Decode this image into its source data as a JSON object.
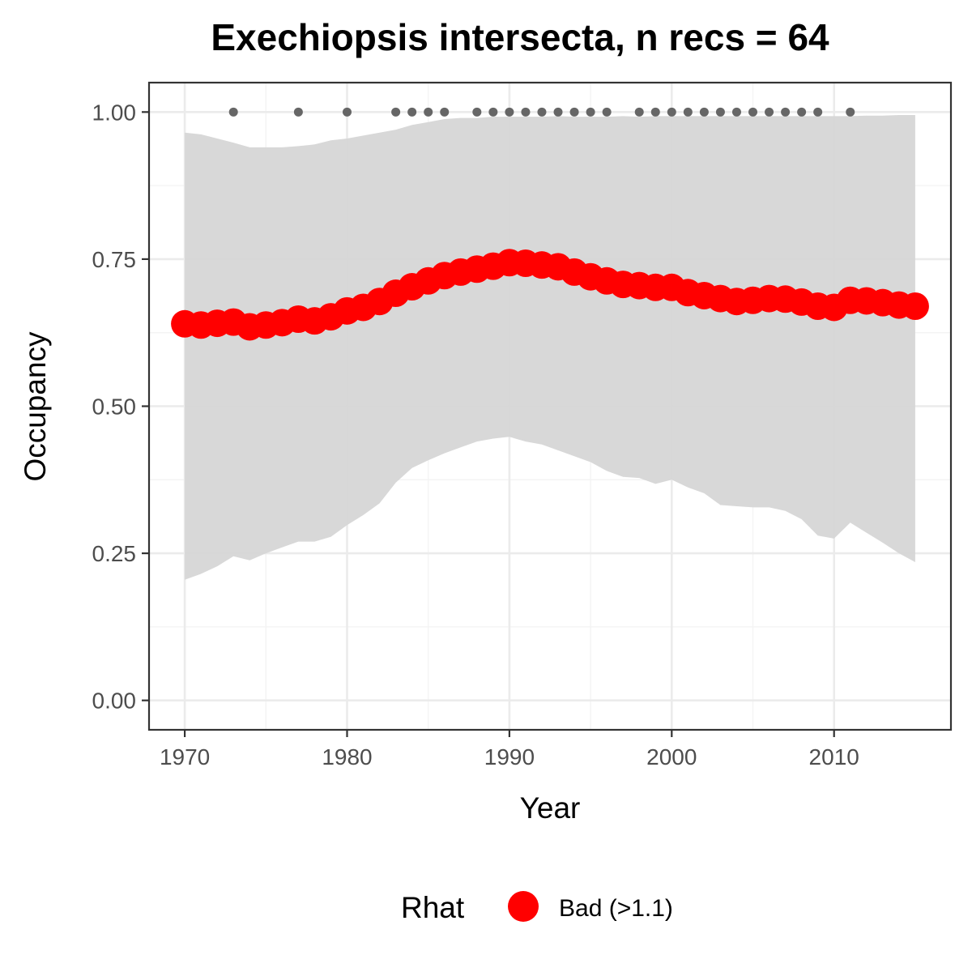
{
  "chart_data": {
    "type": "line",
    "title": "Exechiopsis intersecta, n recs = 64",
    "xlabel": "Year",
    "ylabel": "Occupancy",
    "xlim": [
      1967.8,
      2017.2
    ],
    "ylim": [
      -0.05,
      1.05
    ],
    "x_ticks": [
      1970,
      1980,
      1990,
      2000,
      2010
    ],
    "y_ticks": [
      0.0,
      0.25,
      0.5,
      0.75,
      1.0
    ],
    "y_tick_labels": [
      "0.00",
      "0.25",
      "0.50",
      "0.75",
      "1.00"
    ],
    "grid": true,
    "legend_position": "bottom",
    "colors": {
      "points": "#ff0000",
      "ribbon": "#d6d6d6",
      "records": "#666666",
      "grid_major": "#ebebeb",
      "grid_minor": "#f3f3f3",
      "panel_border": "#333333"
    },
    "legend": {
      "title": "Rhat",
      "entries": [
        {
          "label": "Bad (>1.1)",
          "color": "#ff0000"
        }
      ]
    },
    "series": [
      {
        "name": "Bad (>1.1)",
        "x": [
          1970,
          1971,
          1972,
          1973,
          1974,
          1975,
          1976,
          1977,
          1978,
          1979,
          1980,
          1981,
          1982,
          1983,
          1984,
          1985,
          1986,
          1987,
          1988,
          1989,
          1990,
          1991,
          1992,
          1993,
          1994,
          1995,
          1996,
          1997,
          1998,
          1999,
          2000,
          2001,
          2002,
          2003,
          2004,
          2005,
          2006,
          2007,
          2008,
          2009,
          2010,
          2011,
          2012,
          2013,
          2014,
          2015
        ],
        "y": [
          0.64,
          0.638,
          0.641,
          0.643,
          0.635,
          0.638,
          0.642,
          0.648,
          0.645,
          0.652,
          0.662,
          0.668,
          0.678,
          0.692,
          0.703,
          0.713,
          0.722,
          0.728,
          0.733,
          0.738,
          0.744,
          0.743,
          0.74,
          0.737,
          0.728,
          0.72,
          0.713,
          0.707,
          0.705,
          0.702,
          0.702,
          0.693,
          0.688,
          0.683,
          0.678,
          0.68,
          0.683,
          0.682,
          0.677,
          0.67,
          0.668,
          0.68,
          0.679,
          0.676,
          0.672,
          0.67
        ]
      }
    ],
    "ribbon": {
      "x": [
        1970,
        1971,
        1972,
        1973,
        1974,
        1975,
        1976,
        1977,
        1978,
        1979,
        1980,
        1981,
        1982,
        1983,
        1984,
        1985,
        1986,
        1987,
        1988,
        1989,
        1990,
        1991,
        1992,
        1993,
        1994,
        1995,
        1996,
        1997,
        1998,
        1999,
        2000,
        2001,
        2002,
        2003,
        2004,
        2005,
        2006,
        2007,
        2008,
        2009,
        2010,
        2011,
        2012,
        2013,
        2014,
        2015
      ],
      "upper": [
        0.965,
        0.962,
        0.955,
        0.948,
        0.94,
        0.94,
        0.94,
        0.942,
        0.945,
        0.952,
        0.955,
        0.96,
        0.965,
        0.97,
        0.978,
        0.983,
        0.988,
        0.99,
        0.99,
        0.992,
        0.992,
        0.992,
        0.992,
        0.993,
        0.992,
        0.992,
        0.992,
        0.993,
        0.992,
        0.993,
        0.993,
        0.993,
        0.993,
        0.993,
        0.993,
        0.993,
        0.993,
        0.993,
        0.993,
        0.993,
        0.993,
        0.993,
        0.994,
        0.994,
        0.995,
        0.995
      ],
      "lower": [
        0.205,
        0.215,
        0.228,
        0.245,
        0.238,
        0.25,
        0.26,
        0.27,
        0.27,
        0.278,
        0.298,
        0.315,
        0.335,
        0.37,
        0.395,
        0.408,
        0.42,
        0.43,
        0.44,
        0.445,
        0.448,
        0.44,
        0.435,
        0.425,
        0.415,
        0.405,
        0.39,
        0.38,
        0.378,
        0.368,
        0.375,
        0.362,
        0.352,
        0.332,
        0.33,
        0.328,
        0.328,
        0.322,
        0.308,
        0.28,
        0.275,
        0.302,
        0.285,
        0.268,
        0.25,
        0.235
      ]
    },
    "records": {
      "y": 1.0,
      "x": [
        1973,
        1977,
        1980,
        1983,
        1984,
        1985,
        1986,
        1988,
        1989,
        1990,
        1991,
        1992,
        1993,
        1994,
        1995,
        1996,
        1998,
        1999,
        2000,
        2001,
        2002,
        2003,
        2004,
        2005,
        2006,
        2007,
        2008,
        2009,
        2011
      ]
    }
  }
}
